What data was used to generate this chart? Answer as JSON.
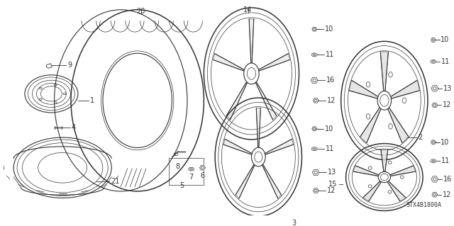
{
  "background_color": "#ffffff",
  "diagram_color": "#333333",
  "figsize": [
    6.4,
    3.19
  ],
  "dpi": 100,
  "footer": "STX4B1800A",
  "font_size_label": 7,
  "font_size_footer": 6
}
